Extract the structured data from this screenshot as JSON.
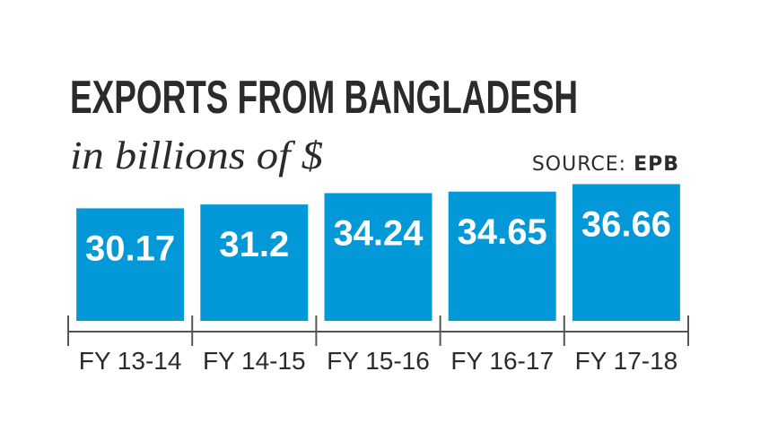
{
  "chart_data": {
    "type": "bar",
    "title": "EXPORTS FROM BANGLADESH",
    "subtitle": "in billions of $",
    "source_label": "SOURCE:",
    "source": "EPB",
    "categories": [
      "FY 13-14",
      "FY 14-15",
      "FY 15-16",
      "FY 16-17",
      "FY 17-18"
    ],
    "values": [
      30.17,
      31.2,
      34.24,
      34.65,
      36.66
    ],
    "color": "#0398d8",
    "ylim": [
      0,
      37
    ]
  }
}
